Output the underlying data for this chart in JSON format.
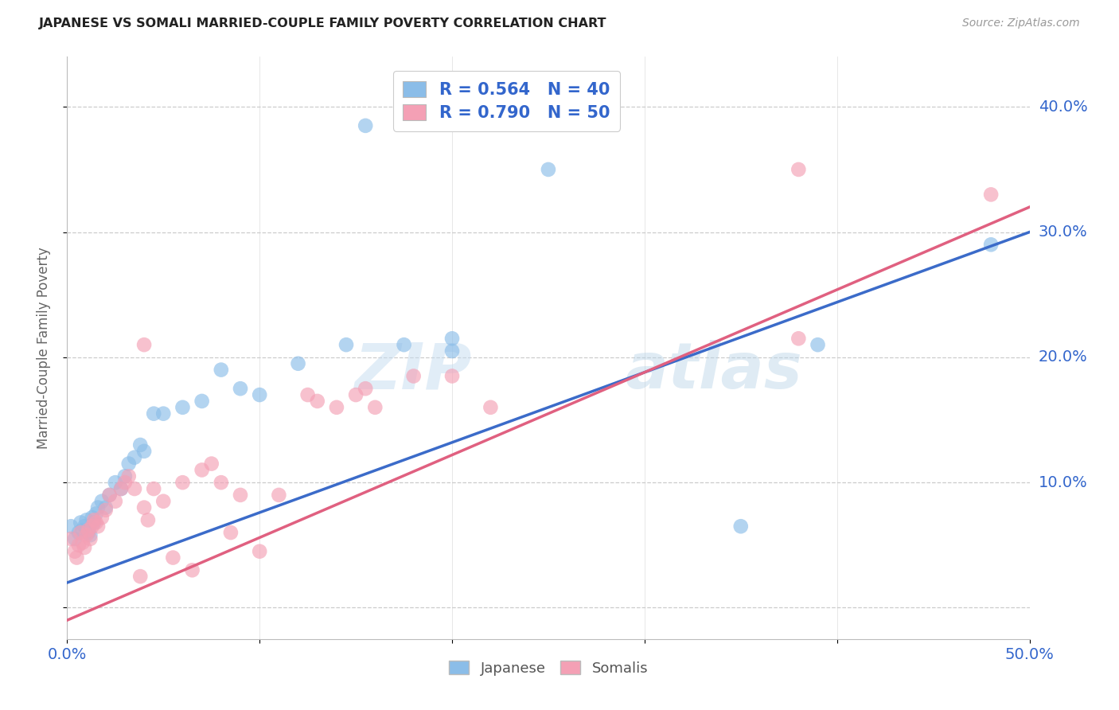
{
  "title": "JAPANESE VS SOMALI MARRIED-COUPLE FAMILY POVERTY CORRELATION CHART",
  "source": "Source: ZipAtlas.com",
  "ylabel": "Married-Couple Family Poverty",
  "ytick_values": [
    0.0,
    0.1,
    0.2,
    0.3,
    0.4
  ],
  "ytick_labels_right": [
    "",
    "10.0%",
    "20.0%",
    "30.0%",
    "40.0%"
  ],
  "xlim": [
    0.0,
    0.5
  ],
  "ylim": [
    -0.025,
    0.44
  ],
  "watermark": "ZIPatlas",
  "japanese_color": "#8BBDE8",
  "somali_color": "#F4A0B5",
  "japanese_line_color": "#3B6BC9",
  "somali_line_color": "#E06080",
  "japanese_scatter": [
    [
      0.002,
      0.065
    ],
    [
      0.004,
      0.055
    ],
    [
      0.006,
      0.06
    ],
    [
      0.007,
      0.068
    ],
    [
      0.008,
      0.062
    ],
    [
      0.009,
      0.065
    ],
    [
      0.01,
      0.07
    ],
    [
      0.011,
      0.06
    ],
    [
      0.012,
      0.058
    ],
    [
      0.013,
      0.072
    ],
    [
      0.014,
      0.068
    ],
    [
      0.015,
      0.075
    ],
    [
      0.016,
      0.08
    ],
    [
      0.018,
      0.085
    ],
    [
      0.02,
      0.08
    ],
    [
      0.022,
      0.09
    ],
    [
      0.025,
      0.1
    ],
    [
      0.028,
      0.095
    ],
    [
      0.03,
      0.105
    ],
    [
      0.032,
      0.115
    ],
    [
      0.035,
      0.12
    ],
    [
      0.038,
      0.13
    ],
    [
      0.04,
      0.125
    ],
    [
      0.045,
      0.155
    ],
    [
      0.05,
      0.155
    ],
    [
      0.06,
      0.16
    ],
    [
      0.07,
      0.165
    ],
    [
      0.08,
      0.19
    ],
    [
      0.09,
      0.175
    ],
    [
      0.1,
      0.17
    ],
    [
      0.12,
      0.195
    ],
    [
      0.145,
      0.21
    ],
    [
      0.175,
      0.21
    ],
    [
      0.2,
      0.215
    ],
    [
      0.155,
      0.385
    ],
    [
      0.25,
      0.35
    ],
    [
      0.2,
      0.205
    ],
    [
      0.35,
      0.065
    ],
    [
      0.39,
      0.21
    ],
    [
      0.48,
      0.29
    ]
  ],
  "somali_scatter": [
    [
      0.002,
      0.055
    ],
    [
      0.004,
      0.045
    ],
    [
      0.005,
      0.04
    ],
    [
      0.006,
      0.05
    ],
    [
      0.007,
      0.06
    ],
    [
      0.008,
      0.052
    ],
    [
      0.009,
      0.048
    ],
    [
      0.01,
      0.058
    ],
    [
      0.011,
      0.062
    ],
    [
      0.012,
      0.055
    ],
    [
      0.013,
      0.065
    ],
    [
      0.014,
      0.07
    ],
    [
      0.015,
      0.068
    ],
    [
      0.016,
      0.065
    ],
    [
      0.018,
      0.072
    ],
    [
      0.02,
      0.078
    ],
    [
      0.022,
      0.09
    ],
    [
      0.025,
      0.085
    ],
    [
      0.028,
      0.095
    ],
    [
      0.03,
      0.1
    ],
    [
      0.032,
      0.105
    ],
    [
      0.035,
      0.095
    ],
    [
      0.038,
      0.025
    ],
    [
      0.04,
      0.08
    ],
    [
      0.042,
      0.07
    ],
    [
      0.045,
      0.095
    ],
    [
      0.05,
      0.085
    ],
    [
      0.055,
      0.04
    ],
    [
      0.06,
      0.1
    ],
    [
      0.065,
      0.03
    ],
    [
      0.07,
      0.11
    ],
    [
      0.075,
      0.115
    ],
    [
      0.08,
      0.1
    ],
    [
      0.085,
      0.06
    ],
    [
      0.09,
      0.09
    ],
    [
      0.1,
      0.045
    ],
    [
      0.11,
      0.09
    ],
    [
      0.125,
      0.17
    ],
    [
      0.13,
      0.165
    ],
    [
      0.14,
      0.16
    ],
    [
      0.15,
      0.17
    ],
    [
      0.155,
      0.175
    ],
    [
      0.16,
      0.16
    ],
    [
      0.18,
      0.185
    ],
    [
      0.2,
      0.185
    ],
    [
      0.22,
      0.16
    ],
    [
      0.04,
      0.21
    ],
    [
      0.38,
      0.215
    ],
    [
      0.38,
      0.35
    ],
    [
      0.48,
      0.33
    ]
  ]
}
